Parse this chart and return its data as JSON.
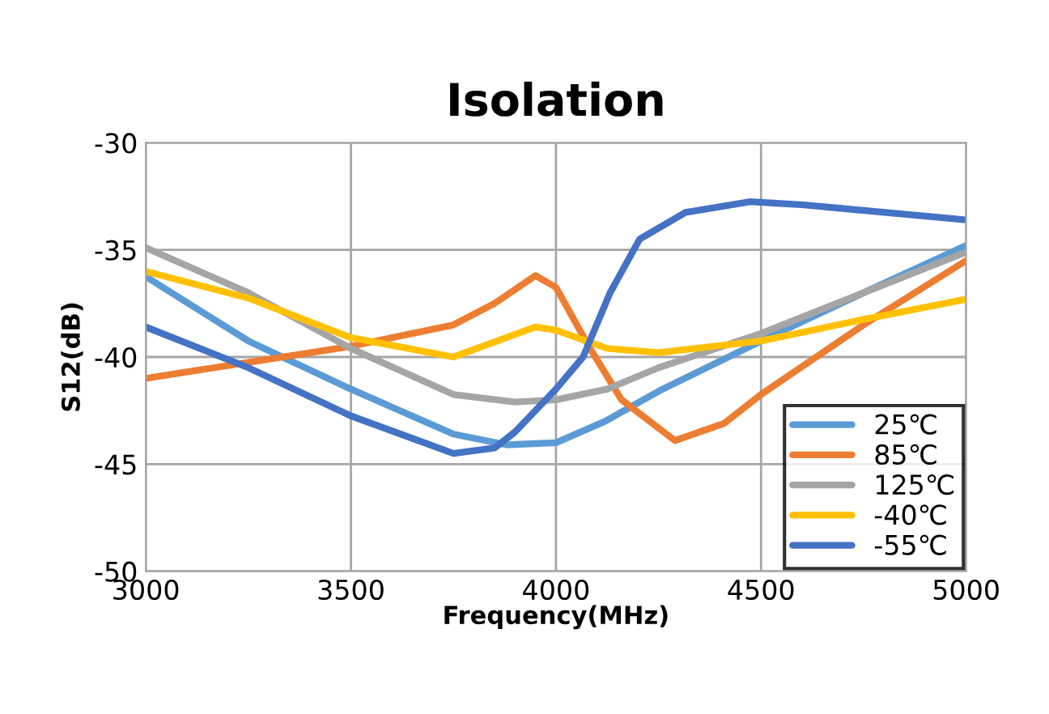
{
  "chart_data": {
    "type": "line",
    "title": "Isolation",
    "xlabel": "Frequency(MHz)",
    "ylabel": "S12(dB)",
    "xlim": [
      3000,
      5000
    ],
    "xticks": [
      3000,
      3500,
      4000,
      4500,
      5000
    ],
    "ylim": [
      -50,
      -30
    ],
    "yticks": [
      -50,
      -45,
      -40,
      -35,
      -30
    ],
    "grid": true,
    "legend": "bottom right",
    "marker": "none",
    "line_style": "solid",
    "series": [
      {
        "name": "25℃",
        "color": "#5b9bd5",
        "x": [
          3000,
          3250,
          3500,
          3750,
          3880,
          4000,
          4120,
          4250,
          4500,
          4750,
          5000
        ],
        "values": [
          -36.25,
          -39.25,
          -41.5,
          -43.6,
          -44.1,
          -44,
          -43,
          -41.6,
          -39.25,
          -37,
          -34.8
        ]
      },
      {
        "name": "85℃",
        "color": "#ed7d31",
        "x": [
          3000,
          3250,
          3500,
          3750,
          3850,
          3950,
          4000,
          4080,
          4160,
          4290,
          4410,
          4500,
          4750,
          5000
        ],
        "values": [
          -41,
          -40.25,
          -39.5,
          -38.5,
          -37.5,
          -36.2,
          -36.75,
          -39.5,
          -42,
          -43.9,
          -43.1,
          -41.75,
          -38.5,
          -35.5
        ]
      },
      {
        "name": "125℃",
        "color": "#a5a5a5",
        "x": [
          3000,
          3250,
          3500,
          3750,
          3900,
          4000,
          4125,
          4250,
          4500,
          4750,
          5000
        ],
        "values": [
          -34.9,
          -37,
          -39.6,
          -41.75,
          -42.1,
          -42,
          -41.5,
          -40.5,
          -38.9,
          -37,
          -35.1
        ]
      },
      {
        "name": "-40℃",
        "color": "#ffc000",
        "x": [
          3000,
          3250,
          3500,
          3750,
          3950,
          4000,
          4125,
          4250,
          4500,
          4750,
          5000
        ],
        "values": [
          -36,
          -37.25,
          -39.1,
          -40,
          -38.6,
          -38.75,
          -39.6,
          -39.8,
          -39.25,
          -38.25,
          -37.3
        ]
      },
      {
        "name": "-55℃",
        "color": "#4472c4",
        "x": [
          3000,
          3250,
          3500,
          3750,
          3850,
          3900,
          3950,
          4000,
          4066,
          4132,
          4204,
          4316,
          4474,
          4605,
          5000
        ],
        "values": [
          -38.6,
          -40.5,
          -42.75,
          -44.5,
          -44.25,
          -43.5,
          -42.5,
          -41.5,
          -40,
          -37,
          -34.5,
          -33.25,
          -32.75,
          -32.9,
          -33.6
        ]
      }
    ]
  }
}
